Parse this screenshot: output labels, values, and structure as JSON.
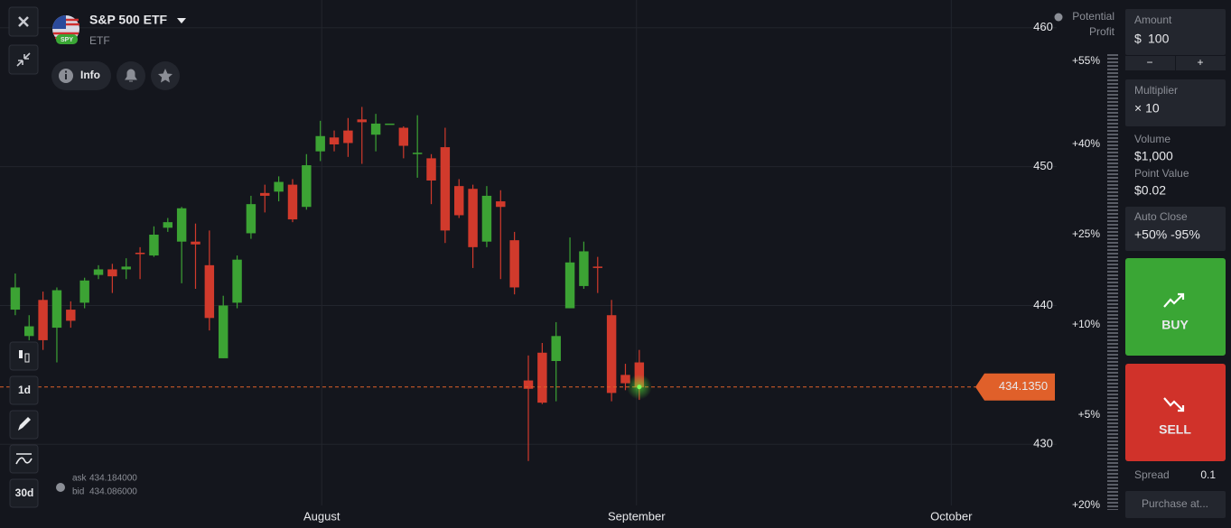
{
  "header": {
    "title": "S&P 500 ETF",
    "subtitle": "ETF",
    "badge": "SPY"
  },
  "toolbar": {
    "info": "Info",
    "timeframe": "1d",
    "period": "30d"
  },
  "quote": {
    "ask_label": "ask",
    "ask": "434.184000",
    "bid_label": "bid",
    "bid": "434.086000"
  },
  "profit_scale": {
    "title": [
      "Potential",
      "Profit"
    ],
    "labels": [
      "+55%",
      "+40%",
      "+25%",
      "+10%",
      "+5%",
      "+20%"
    ]
  },
  "panel": {
    "amount_label": "Amount",
    "currency": "$",
    "amount": "100",
    "minus": "−",
    "plus": "+",
    "multiplier_label": "Multiplier",
    "multiplier": "× 10",
    "volume_label": "Volume",
    "volume": "$1,000",
    "point_value_label": "Point Value",
    "point_value": "$0.02",
    "auto_close_label": "Auto Close",
    "auto_close": "+50% -95%",
    "buy": "BUY",
    "sell": "SELL",
    "spread_label": "Spread",
    "spread": "0.1",
    "purchase": "Purchase at..."
  },
  "chart_data": {
    "type": "candlestick",
    "open": [
      439.7,
      437.8,
      440.4,
      438.4,
      439.7,
      440.2,
      442.2,
      442.6,
      442.6,
      443.8,
      443.6,
      445.6,
      444.6,
      444.6,
      442.9,
      436.2,
      440.2,
      445.2,
      448.1,
      448.2,
      448.7,
      447.1,
      451.1,
      452.1,
      452.6,
      453.4,
      452.3,
      453.1,
      452.8,
      450.9,
      450.6,
      451.4,
      448.6,
      448.4,
      444.6,
      447.5,
      444.7,
      434.6,
      436.6,
      436.0,
      439.8,
      441.4,
      442.8,
      439.3,
      435.0,
      435.9
    ],
    "high": [
      442.3,
      439.3,
      441.0,
      441.3,
      440.3,
      442.0,
      442.9,
      443.0,
      443.4,
      444.2,
      445.7,
      446.3,
      447.1,
      445.9,
      445.4,
      440.7,
      443.6,
      447.9,
      448.7,
      449.3,
      449.1,
      450.9,
      453.3,
      452.6,
      453.5,
      454.3,
      453.8,
      453.1,
      452.9,
      453.7,
      450.9,
      452.8,
      449.1,
      448.7,
      448.6,
      448.3,
      445.3,
      436.4,
      437.3,
      438.8,
      444.9,
      444.6,
      443.5,
      440.4,
      435.8,
      436.8
    ],
    "low": [
      439.3,
      437.5,
      436.8,
      435.9,
      438.4,
      439.8,
      441.9,
      440.9,
      441.9,
      441.9,
      443.5,
      445.3,
      441.6,
      441.2,
      438.2,
      436.2,
      439.8,
      444.8,
      446.7,
      447.5,
      446.0,
      446.9,
      450.4,
      451.1,
      450.7,
      450.2,
      451.1,
      453.1,
      450.6,
      449.2,
      447.3,
      444.5,
      446.3,
      442.7,
      444.2,
      441.9,
      440.8,
      428.8,
      432.9,
      433.1,
      439.8,
      441.2,
      440.9,
      433.1,
      433.9,
      433.2
    ],
    "close": [
      441.3,
      438.5,
      437.5,
      441.1,
      438.9,
      441.8,
      442.6,
      442.1,
      442.8,
      443.7,
      445.1,
      446.0,
      447.0,
      444.4,
      439.1,
      440.0,
      443.3,
      447.3,
      447.9,
      448.9,
      446.2,
      450.1,
      452.2,
      451.6,
      451.7,
      453.2,
      453.1,
      453.1,
      451.5,
      451.0,
      449.0,
      445.4,
      446.5,
      444.2,
      447.9,
      447.1,
      441.3,
      434.0,
      433.0,
      437.8,
      443.1,
      443.9,
      442.7,
      433.7,
      434.4,
      434.1
    ],
    "color_up": "#3ca334",
    "color_down": "#d13a2c",
    "xlim": [
      -1.1,
      75.1
    ],
    "xticks": [
      {
        "value": 22.1,
        "label": "August"
      },
      {
        "value": 44.8,
        "label": "September"
      },
      {
        "value": 67.5,
        "label": "October"
      }
    ],
    "ylim": [
      425.6,
      462.0
    ],
    "yticks": [
      430,
      440,
      450,
      460
    ],
    "grid": true,
    "current_price": 434.135,
    "current_price_label": "434.1350",
    "current_price_color": "#e0602a"
  }
}
